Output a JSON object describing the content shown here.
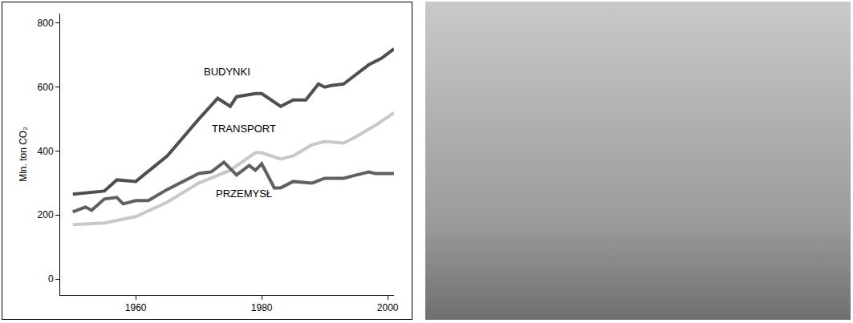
{
  "chart_data": {
    "type": "line",
    "y_label": "Mln. ton CO₂",
    "xlim": [
      1948,
      2001
    ],
    "xticks": [
      1960,
      1980,
      2000
    ],
    "ylim": [
      -50,
      830
    ],
    "yticks": [
      0,
      200,
      400,
      600,
      800
    ],
    "grid": false,
    "series": [
      {
        "name": "BUDYNKI",
        "color": "#4f4f4f",
        "x": [
          1950,
          1955,
          1957,
          1960,
          1965,
          1970,
          1973,
          1975,
          1976,
          1979,
          1980,
          1983,
          1985,
          1987,
          1989,
          1990,
          1991,
          1993,
          1995,
          1997,
          1999,
          2001
        ],
        "values": [
          265,
          275,
          310,
          305,
          385,
          500,
          565,
          540,
          570,
          580,
          580,
          540,
          560,
          560,
          610,
          600,
          605,
          610,
          640,
          670,
          690,
          720
        ]
      },
      {
        "name": "TRANSPORT",
        "color": "#c8c8c8",
        "x": [
          1950,
          1955,
          1960,
          1965,
          1970,
          1975,
          1979,
          1980,
          1983,
          1985,
          1988,
          1990,
          1993,
          1995,
          1998,
          2001
        ],
        "values": [
          170,
          175,
          195,
          240,
          300,
          340,
          395,
          395,
          375,
          385,
          420,
          430,
          425,
          445,
          480,
          520
        ]
      },
      {
        "name": "PRZEMYSŁ",
        "color": "#606060",
        "x": [
          1950,
          1952,
          1953,
          1955,
          1957,
          1958,
          1960,
          1962,
          1965,
          1968,
          1970,
          1972,
          1974,
          1976,
          1978,
          1979,
          1980,
          1982,
          1983,
          1985,
          1988,
          1990,
          1993,
          1995,
          1997,
          1998,
          2000,
          2001
        ],
        "values": [
          210,
          225,
          215,
          250,
          255,
          235,
          245,
          245,
          280,
          310,
          330,
          335,
          365,
          325,
          355,
          340,
          360,
          285,
          285,
          305,
          300,
          315,
          315,
          325,
          335,
          330,
          330,
          330
        ]
      }
    ]
  }
}
